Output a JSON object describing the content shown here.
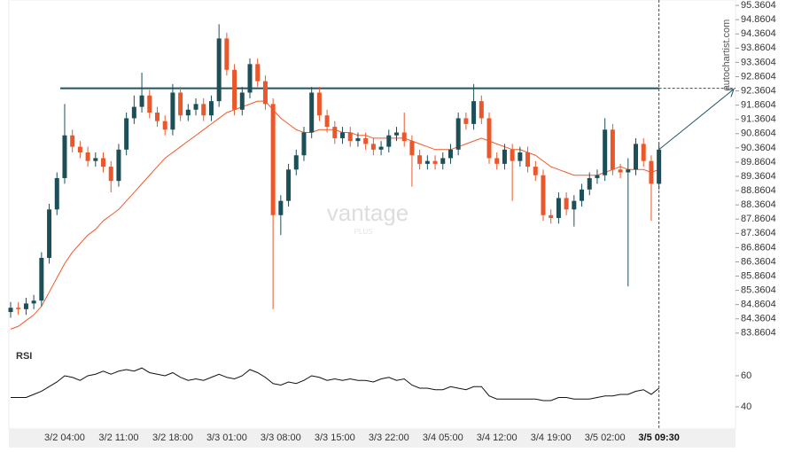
{
  "chart_data": {
    "type": "candlestick",
    "categories": [
      null,
      null,
      null,
      null,
      null,
      null,
      null,
      "3/2 04:00",
      null,
      null,
      null,
      null,
      null,
      null,
      "3/2 11:00",
      null,
      null,
      null,
      null,
      null,
      null,
      "3/2 18:00",
      null,
      null,
      null,
      null,
      null,
      null,
      "3/3 01:00",
      null,
      null,
      null,
      null,
      null,
      null,
      "3/3 08:00",
      null,
      null,
      null,
      null,
      null,
      null,
      "3/3 15:00",
      null,
      null,
      null,
      null,
      null,
      null,
      "3/3 22:00",
      null,
      null,
      null,
      null,
      null,
      null,
      "3/4 05:00",
      null,
      null,
      null,
      null,
      null,
      null,
      "3/4 12:00",
      null,
      null,
      null,
      null,
      null,
      null,
      "3/4 19:00",
      null,
      null,
      null,
      null,
      null,
      null,
      "3/5 02:00",
      null,
      null,
      null,
      null,
      null,
      null,
      "3/5 09:30"
    ],
    "open": [
      84.6,
      84.75,
      84.7,
      84.9,
      85.0,
      86.5,
      88.2,
      89.3,
      90.8,
      90.4,
      90.2,
      89.9,
      90.0,
      89.7,
      89.2,
      90.3,
      91.4,
      91.8,
      92.2,
      91.6,
      91.3,
      91.0,
      92.3,
      91.5,
      91.7,
      91.9,
      91.5,
      92.0,
      94.2,
      93.1,
      91.7,
      92.3,
      93.3,
      92.7,
      91.9,
      88.0,
      88.5,
      89.6,
      90.1,
      90.9,
      92.3,
      91.5,
      91.1,
      90.7,
      90.9,
      90.6,
      90.7,
      90.5,
      90.3,
      90.4,
      90.8,
      90.9,
      90.6,
      90.1,
      89.8,
      89.9,
      89.8,
      90.0,
      90.3,
      91.4,
      91.2,
      92.0,
      91.4,
      90.0,
      89.8,
      90.3,
      89.9,
      90.2,
      89.7,
      89.4,
      88.0,
      87.9,
      88.6,
      88.2,
      88.5,
      88.9,
      89.3,
      89.4,
      91.0,
      89.6,
      89.5,
      89.6,
      90.5,
      89.9,
      89.1
    ],
    "high": [
      84.95,
      84.95,
      85.1,
      85.2,
      86.7,
      88.4,
      89.5,
      91.9,
      91.0,
      90.6,
      90.4,
      90.2,
      90.2,
      89.9,
      90.5,
      91.6,
      92.2,
      93.0,
      92.4,
      91.8,
      91.5,
      92.6,
      92.5,
      91.9,
      92.1,
      92.1,
      92.2,
      94.7,
      94.4,
      93.3,
      92.5,
      93.5,
      93.5,
      92.9,
      92.1,
      88.7,
      89.8,
      90.3,
      91.1,
      92.5,
      92.5,
      91.7,
      91.3,
      91.1,
      91.1,
      90.9,
      90.9,
      90.7,
      90.6,
      91.0,
      91.1,
      91.6,
      90.8,
      90.3,
      90.1,
      90.1,
      90.2,
      90.5,
      91.6,
      91.6,
      92.6,
      92.2,
      91.6,
      90.2,
      90.5,
      90.5,
      90.4,
      90.4,
      89.9,
      89.6,
      88.2,
      88.8,
      88.8,
      88.7,
      89.1,
      89.5,
      89.6,
      91.4,
      91.2,
      89.8,
      90.0,
      90.7,
      90.7,
      90.1,
      90.5
    ],
    "low": [
      84.4,
      84.5,
      84.5,
      84.7,
      84.8,
      86.3,
      88.0,
      89.1,
      90.2,
      90.0,
      89.7,
      89.7,
      89.5,
      88.8,
      89.0,
      90.1,
      91.2,
      91.6,
      91.4,
      91.1,
      90.8,
      90.8,
      91.3,
      91.3,
      91.5,
      91.3,
      91.3,
      91.8,
      92.9,
      91.5,
      91.5,
      92.1,
      92.5,
      91.7,
      84.7,
      87.3,
      88.3,
      89.4,
      89.9,
      90.7,
      91.3,
      90.9,
      90.5,
      90.5,
      90.4,
      90.4,
      90.3,
      90.1,
      90.1,
      90.2,
      90.6,
      90.4,
      89.0,
      89.6,
      89.6,
      89.6,
      89.6,
      89.8,
      90.1,
      91.0,
      91.0,
      91.2,
      89.8,
      89.6,
      89.6,
      88.5,
      89.7,
      89.5,
      89.2,
      87.8,
      87.7,
      87.7,
      88.0,
      87.6,
      88.3,
      88.7,
      89.1,
      89.2,
      89.4,
      89.3,
      85.5,
      89.4,
      89.7,
      87.8,
      88.9
    ],
    "close": [
      84.75,
      84.7,
      84.9,
      85.0,
      86.5,
      88.2,
      89.3,
      90.8,
      90.4,
      90.2,
      89.9,
      90.0,
      89.7,
      89.2,
      90.3,
      91.4,
      91.8,
      92.2,
      91.6,
      91.3,
      91.0,
      92.3,
      91.5,
      91.7,
      91.9,
      91.5,
      92.0,
      94.2,
      93.1,
      91.7,
      92.3,
      93.3,
      92.7,
      91.9,
      88.0,
      88.5,
      89.6,
      90.1,
      90.9,
      92.3,
      91.5,
      91.1,
      90.7,
      90.9,
      90.6,
      90.7,
      90.5,
      90.3,
      90.4,
      90.8,
      90.9,
      90.6,
      90.1,
      89.8,
      89.9,
      89.8,
      90.0,
      90.3,
      91.4,
      91.2,
      92.0,
      91.4,
      90.0,
      89.8,
      90.3,
      89.9,
      90.2,
      89.7,
      89.4,
      88.0,
      87.9,
      88.6,
      88.2,
      88.5,
      88.9,
      89.3,
      89.4,
      91.0,
      89.6,
      89.5,
      89.6,
      90.5,
      89.9,
      89.1,
      90.3
    ],
    "up_color": "#1d4f58",
    "down_color": "#e9572b",
    "ma": {
      "color": "#ef5a2a",
      "values": [
        84.0,
        84.1,
        84.3,
        84.5,
        84.8,
        85.3,
        85.8,
        86.3,
        86.7,
        87.0,
        87.3,
        87.5,
        87.8,
        88.0,
        88.2,
        88.5,
        88.8,
        89.1,
        89.4,
        89.7,
        90.0,
        90.2,
        90.4,
        90.6,
        90.8,
        91.0,
        91.2,
        91.4,
        91.6,
        91.7,
        91.8,
        91.9,
        92.0,
        92.0,
        91.7,
        91.4,
        91.2,
        91.0,
        90.9,
        90.9,
        91.0,
        91.0,
        91.0,
        90.9,
        90.9,
        90.8,
        90.8,
        90.7,
        90.7,
        90.7,
        90.7,
        90.7,
        90.6,
        90.5,
        90.4,
        90.3,
        90.3,
        90.3,
        90.4,
        90.5,
        90.6,
        90.7,
        90.6,
        90.5,
        90.4,
        90.3,
        90.3,
        90.2,
        90.1,
        89.9,
        89.7,
        89.6,
        89.5,
        89.4,
        89.4,
        89.4,
        89.4,
        89.5,
        89.6,
        89.7,
        89.6,
        89.6,
        89.6,
        89.5,
        89.6
      ]
    },
    "resistance": 92.45,
    "ylim": [
      83.42,
      95.55
    ],
    "yticks": [
      95.3604,
      94.8604,
      94.3604,
      93.8604,
      93.3604,
      92.8604,
      92.3604,
      91.8604,
      91.3604,
      90.8604,
      90.3604,
      89.8604,
      89.3604,
      88.8604,
      88.3604,
      87.8604,
      87.3604,
      86.8604,
      86.3604,
      85.8604,
      85.3604,
      84.8604,
      84.3604,
      83.8604
    ],
    "rsi": {
      "label": "RSI",
      "color": "#111111",
      "ylim": [
        28,
        73.7
      ],
      "yticks": [
        60,
        40
      ],
      "values": [
        46,
        46,
        46,
        48,
        50,
        53,
        56,
        60,
        59,
        57,
        60,
        61,
        63,
        61,
        63,
        64,
        63,
        65,
        62,
        61,
        60,
        62,
        59,
        57,
        58,
        57,
        59,
        61,
        59,
        58,
        60,
        64,
        62,
        59,
        55,
        54,
        56,
        55,
        57,
        60,
        59,
        57,
        58,
        57,
        58,
        57,
        57,
        56,
        58,
        59,
        57,
        58,
        54,
        52,
        52,
        51,
        51,
        53,
        52,
        51,
        53,
        53,
        47,
        45,
        45,
        45,
        45,
        45,
        45,
        44,
        44,
        46,
        46,
        45,
        45,
        45,
        46,
        47,
        47,
        48,
        48,
        50,
        51,
        48,
        52
      ]
    },
    "watermark": {
      "name": "vantage",
      "sub": "PLUS"
    },
    "source": "autochartist.com"
  }
}
